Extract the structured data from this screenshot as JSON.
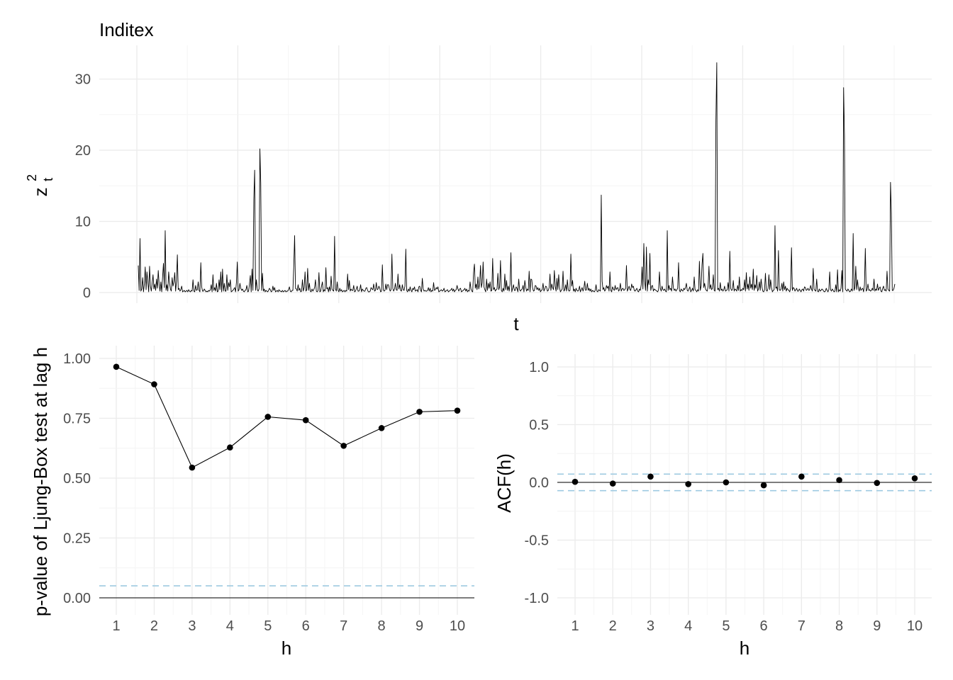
{
  "chart_data": [
    {
      "type": "line",
      "title": "Inditex",
      "xlabel": "t",
      "ylabel": "z",
      "ylabel_superscript": "2",
      "ylabel_subscript": "t",
      "yticks": [
        "0",
        "10",
        "20",
        "30"
      ],
      "ylim": [
        0,
        33
      ],
      "grid": true,
      "n_points": 750,
      "series": [
        {
          "values": [
            3.8,
            0.3,
            7.6,
            0.2,
            0.5,
            2.1,
            0.1,
            1.2,
            3.6,
            0.4,
            2.9,
            1.5,
            0.1,
            3.7,
            0.9,
            0.2,
            1.3,
            2.5,
            0.5,
            1.2,
            0.3,
            1.9,
            0.6,
            3.1,
            1.2,
            0.2,
            1.5,
            0.1,
            2.2,
            4.1,
            0.7,
            8.7,
            0.3,
            1.1,
            0.2,
            2.9,
            1.4,
            0.5,
            0.2,
            2.1,
            0.9,
            1.5,
            2.8,
            0.2,
            1.6,
            5.3,
            0.4,
            0.6,
            0.2,
            0.4,
            0.9,
            0.1,
            0.2,
            0.3,
            0.1,
            0.2,
            0.3,
            0.1,
            0.4,
            0.2,
            0.1,
            0.3,
            0.2,
            1.8,
            0.2,
            0.1,
            1.0,
            0.3,
            0.4,
            1.5,
            0.3,
            0.1,
            4.2,
            0.8,
            0.2,
            0.2,
            0.5,
            0.3,
            0.1,
            0.2,
            0.1,
            0.3,
            0.2,
            0.4,
            1.1,
            0.1,
            2.5,
            0.3,
            0.7,
            0.2,
            1.3,
            0.1,
            0.2,
            1.8,
            0.4,
            2.9,
            0.1,
            3.3,
            0.2,
            1.3,
            0.2,
            0.2,
            2.5,
            0.3,
            1.4,
            0.8,
            1.8,
            0.1,
            0.2,
            0.3,
            0.5,
            0.7,
            0.1,
            1.4,
            4.3,
            0.2,
            0.4,
            1.3,
            0.6,
            0.3,
            0.5,
            0.2,
            0.1,
            0.3,
            0.4,
            1.0,
            0.1,
            0.2,
            1.2,
            2.4,
            0.1,
            3.3,
            0.3,
            13.0,
            17.2,
            0.3,
            1.8,
            0.4,
            0.2,
            0.5,
            20.2,
            15.4,
            0.3,
            2.7,
            0.2,
            0.5,
            0.1,
            0.3,
            0.2,
            0.1,
            0.3,
            0.6,
            0.4,
            0.1,
            0.2,
            0.9,
            0.3,
            0.7,
            0.1,
            0.2,
            0.3,
            0.1,
            0.4,
            0.2,
            0.2,
            0.1,
            0.3,
            0.1,
            0.2,
            0.3,
            0.1,
            0.2,
            0.2,
            0.4,
            0.8,
            0.2,
            0.1,
            0.3,
            0.3,
            3.6,
            8.0,
            0.6,
            0.5,
            0.2,
            1.1,
            0.3,
            0.6,
            0.1,
            0.2,
            1.8,
            0.2,
            0.7,
            2.9,
            0.2,
            0.4,
            3.4,
            0.3,
            1.3,
            0.2,
            0.1,
            0.5,
            0.2,
            0.4,
            0.7,
            1.8,
            0.2,
            0.1,
            0.3,
            2.8,
            0.1,
            0.2,
            0.9,
            1.5,
            0.1,
            0.4,
            0.2,
            3.5,
            0.5,
            0.7,
            0.1,
            0.8,
            0.2,
            2.3,
            0.5,
            0.3,
            0.2,
            7.9,
            0.5,
            0.2,
            1.5,
            0.3,
            0.1,
            0.6,
            0.2,
            0.4,
            0.1,
            0.2,
            0.3,
            0.1,
            0.3,
            0.2,
            2.6,
            0.4,
            1.7,
            0.2,
            0.5,
            0.3,
            0.3,
            1.0,
            0.1,
            0.2,
            0.5,
            0.9,
            0.2,
            0.2,
            0.4,
            1.1,
            0.1,
            0.5,
            0.3,
            0.2,
            0.2,
            0.6,
            0.7,
            0.3,
            0.1,
            0.1,
            0.2,
            0.7,
            0.5,
            0.4,
            1.2,
            0.2,
            0.3,
            1.4,
            0.4,
            0.5,
            0.9,
            0.6,
            0.1,
            0.2,
            3.9,
            0.4,
            0.2,
            0.3,
            1.2,
            0.4,
            1.1,
            1.1,
            0.6,
            0.2,
            0.4,
            5.4,
            0.6,
            0.2,
            0.5,
            1.3,
            0.4,
            0.3,
            2.6,
            0.5,
            1.1,
            0.3,
            0.2,
            1.1,
            0.4,
            0.3,
            0.9,
            6.1,
            0.3,
            0.1,
            0.5,
            0.2,
            0.8,
            0.3,
            0.1,
            0.6,
            0.4,
            0.8,
            0.2,
            0.3,
            0.4,
            0.1,
            0.8,
            0.9,
            0.3,
            0.1,
            2.0,
            0.5,
            0.2,
            0.3,
            0.2,
            0.2,
            0.3,
            0.7,
            0.2,
            0.6,
            0.1,
            0.3,
            0.2,
            1.4,
            0.3,
            0.4,
            0.7,
            0.5,
            0.8,
            0.1,
            0.2,
            0.3,
            0.4,
            0.2,
            0.3,
            0.6,
            0.1,
            0.2,
            0.3,
            0.4,
            0.1,
            0.2,
            0.3,
            0.4,
            0.6,
            0.2,
            0.5,
            0.1,
            0.3,
            0.4,
            1.0,
            0.5,
            0.2,
            0.5,
            0.6,
            0.1,
            0.2,
            0.3,
            0.4,
            0.6,
            0.2,
            0.5,
            0.1,
            0.3,
            0.2,
            1.5,
            0.5,
            0.2,
            0.1,
            2.8,
            4.0,
            0.6,
            1.2,
            0.4,
            2.2,
            0.5,
            1.2,
            3.8,
            0.7,
            1.4,
            4.3,
            0.8,
            0.4,
            0.1,
            1.9,
            0.3,
            1.3,
            0.6,
            1.5,
            0.2,
            0.3,
            4.8,
            0.4,
            0.7,
            0.2,
            0.4,
            0.5,
            2.7,
            0.4,
            0.8,
            4.5,
            0.3,
            0.1,
            0.6,
            0.2,
            2.6,
            0.4,
            1.7,
            0.3,
            0.9,
            0.2,
            1.2,
            5.6,
            0.1,
            0.6,
            1.1,
            0.3,
            0.3,
            0.8,
            0.6,
            0.1,
            1.9,
            0.4,
            0.2,
            0.4,
            0.5,
            1.0,
            0.1,
            1.7,
            0.8,
            0.2,
            0.5,
            0.3,
            3.0,
            0.1,
            1.9,
            1.8,
            0.6,
            0.2,
            0.3,
            1.0,
            0.9,
            0.4,
            0.7,
            0.3,
            0.6,
            0.1,
            0.3,
            0.4,
            1.3,
            0.2,
            0.5,
            0.9,
            0.8,
            0.2,
            0.3,
            0.7,
            2.6,
            0.3,
            1.2,
            0.7,
            0.4,
            3.1,
            0.9,
            0.2,
            2.0,
            0.4,
            2.5,
            0.7,
            0.1,
            0.3,
            0.5,
            3.0,
            0.2,
            0.4,
            1.1,
            0.2,
            1.8,
            0.4,
            0.2,
            0.3,
            5.4,
            0.9,
            1.7,
            0.2,
            0.5,
            0.1,
            0.6,
            0.3,
            0.2,
            0.3,
            0.9,
            0.1,
            0.4,
            0.7,
            0.2,
            0.6,
            1.6,
            0.3,
            0.4,
            1.3,
            0.3,
            0.6,
            0.2,
            0.5,
            0.1,
            0.3,
            0.2,
            0.1,
            0.3,
            1.1,
            0.2,
            0.1,
            0.4,
            0.3,
            0.2,
            13.7,
            1.6,
            0.4,
            0.7,
            0.2,
            0.4,
            1.0,
            0.6,
            0.9,
            0.2,
            2.9,
            0.3,
            0.1,
            0.8,
            0.5,
            0.3,
            1.0,
            0.4,
            0.6,
            0.7,
            0.2,
            0.4,
            1.3,
            0.2,
            0.5,
            0.6,
            0.3,
            0.4,
            0.6,
            3.8,
            0.2,
            0.5,
            0.9,
            0.4,
            0.3,
            1.2,
            0.7,
            0.9,
            0.3,
            0.2,
            0.4,
            0.6,
            0.2,
            0.1,
            0.5,
            0.3,
            1.1,
            3.6,
            0.5,
            6.9,
            1.6,
            0.3,
            6.4,
            0.2,
            1.8,
            1.1,
            5.5,
            0.3,
            0.9,
            1.0,
            0.2,
            0.5,
            0.4,
            0.3,
            0.2,
            0.1,
            0.4,
            2.9,
            0.6,
            0.2,
            0.9,
            0.4,
            0.3,
            0.5,
            0.2,
            0.1,
            8.7,
            0.3,
            1.0,
            0.4,
            0.6,
            0.2,
            2.2,
            0.7,
            0.3,
            0.5,
            0.2,
            0.4,
            0.6,
            4.2,
            0.3,
            0.1,
            0.5,
            0.3,
            0.2,
            0.6,
            0.4,
            0.7,
            1.3,
            0.3,
            0.2,
            0.5,
            0.8,
            0.1,
            0.3,
            0.6,
            0.2,
            2.2,
            0.4,
            0.3,
            0.1,
            0.4,
            0.2,
            4.4,
            0.3,
            0.9,
            3.9,
            5.5,
            0.7,
            1.3,
            0.5,
            0.3,
            0.2,
            0.9,
            3.7,
            0.5,
            1.1,
            0.4,
            0.6,
            2.5,
            0.3,
            0.2,
            24.2,
            32.3,
            0.4,
            0.6,
            0.2,
            1.4,
            0.3,
            0.5,
            0.2,
            0.4,
            0.9,
            0.2,
            0.3,
            0.4,
            1.4,
            0.2,
            5.8,
            0.6,
            0.3,
            0.4,
            1.7,
            0.2,
            0.5,
            0.4,
            0.2,
            1.0,
            0.3,
            2.2,
            0.2,
            0.4,
            0.3,
            0.6,
            0.4,
            1.8,
            0.2,
            2.8,
            0.5,
            1.2,
            0.3,
            2.2,
            0.6,
            1.2,
            0.4,
            3.3,
            0.3,
            1.1,
            0.6,
            2.4,
            0.2,
            0.5,
            1.5,
            0.3,
            1.9,
            0.8,
            0.2,
            0.1,
            0.4,
            2.7,
            0.3,
            0.2,
            0.6,
            2.5,
            0.4,
            1.8,
            0.7,
            0.1,
            0.3,
            0.4,
            9.4,
            0.6,
            0.8,
            0.2,
            5.9,
            0.4,
            0.3,
            0.5,
            1.3,
            0.2,
            1.5,
            0.4,
            0.9,
            0.2,
            0.6,
            0.4,
            0.3,
            0.1,
            0.6,
            6.3,
            0.3,
            0.7,
            0.6,
            0.2,
            0.4,
            0.6,
            0.2,
            0.2,
            0.5,
            0.3,
            0.1,
            0.4,
            0.5,
            0.2,
            0.8,
            0.7,
            0.3,
            0.4,
            0.6,
            0.3,
            0.4,
            1.0,
            0.5,
            0.2,
            3.4,
            0.5,
            0.3,
            0.2,
            1.9,
            0.2,
            0.1,
            0.5,
            0.2,
            0.3,
            0.5,
            0.4,
            0.2,
            0.1,
            0.2,
            0.6,
            0.3,
            0.1,
            0.4,
            2.9,
            0.4,
            0.2,
            0.5,
            0.3,
            0.1,
            0.2,
            1.1,
            0.1,
            3.2,
            0.1,
            0.4,
            0.2,
            0.6,
            3.1,
            0.1,
            28.8,
            22.0,
            0.5,
            0.3,
            0.2,
            0.5,
            0.3,
            0.1,
            0.2,
            0.5,
            0.2,
            8.3,
            0.3,
            0.7,
            3.7,
            0.4,
            1.8,
            0.6,
            0.2,
            0.8,
            0.3,
            0.5,
            0.6,
            0.1,
            1.1,
            6.2,
            0.2,
            0.4,
            1.2,
            0.3,
            0.4,
            0.2,
            0.3,
            0.6,
            0.3,
            1.9,
            0.2,
            0.5,
            0.3,
            1.2,
            0.3,
            0.6,
            0.8,
            0.2,
            0.1,
            0.6,
            0.9,
            0.3,
            0.4,
            0.2,
            3.0,
            0.5,
            0.3,
            0.2,
            15.5,
            11.2,
            0.3,
            0.3,
            0.6,
            1.2
          ]
        }
      ]
    },
    {
      "type": "line",
      "xlabel": "h",
      "ylabel": "p-value of Ljung-Box test at lag h",
      "xticks": [
        "1",
        "2",
        "3",
        "4",
        "5",
        "6",
        "7",
        "8",
        "9",
        "10"
      ],
      "yticks": [
        "0.00",
        "0.25",
        "0.50",
        "0.75",
        "1.00"
      ],
      "ylim": [
        -0.04,
        1.08
      ],
      "x": [
        1,
        2,
        3,
        4,
        5,
        6,
        7,
        8,
        9,
        10
      ],
      "values": [
        0.965,
        0.892,
        0.544,
        0.628,
        0.756,
        0.742,
        0.635,
        0.709,
        0.777,
        0.782
      ],
      "reference_lines": [
        {
          "y": 0.05,
          "style": "dashed",
          "color": "#9ecae1"
        },
        {
          "y": 0,
          "style": "solid",
          "color": "#000000"
        }
      ],
      "grid": true
    },
    {
      "type": "scatter",
      "xlabel": "h",
      "ylabel": "ACF(h)",
      "xticks": [
        "1",
        "2",
        "3",
        "4",
        "5",
        "6",
        "7",
        "8",
        "9",
        "10"
      ],
      "yticks": [
        "-1.0",
        "-0.5",
        "0.0",
        "0.5",
        "1.0"
      ],
      "ylim": [
        -1.1,
        1.1
      ],
      "x": [
        1,
        2,
        3,
        4,
        5,
        6,
        7,
        8,
        9,
        10
      ],
      "values": [
        0.005,
        -0.01,
        0.05,
        -0.015,
        0.0,
        -0.025,
        0.05,
        0.02,
        -0.005,
        0.035
      ],
      "reference_lines": [
        {
          "y": 0.072,
          "style": "dashed",
          "color": "#9ecae1"
        },
        {
          "y": -0.072,
          "style": "dashed",
          "color": "#9ecae1"
        },
        {
          "y": 0,
          "style": "solid",
          "color": "#000000"
        }
      ],
      "grid": true
    }
  ]
}
